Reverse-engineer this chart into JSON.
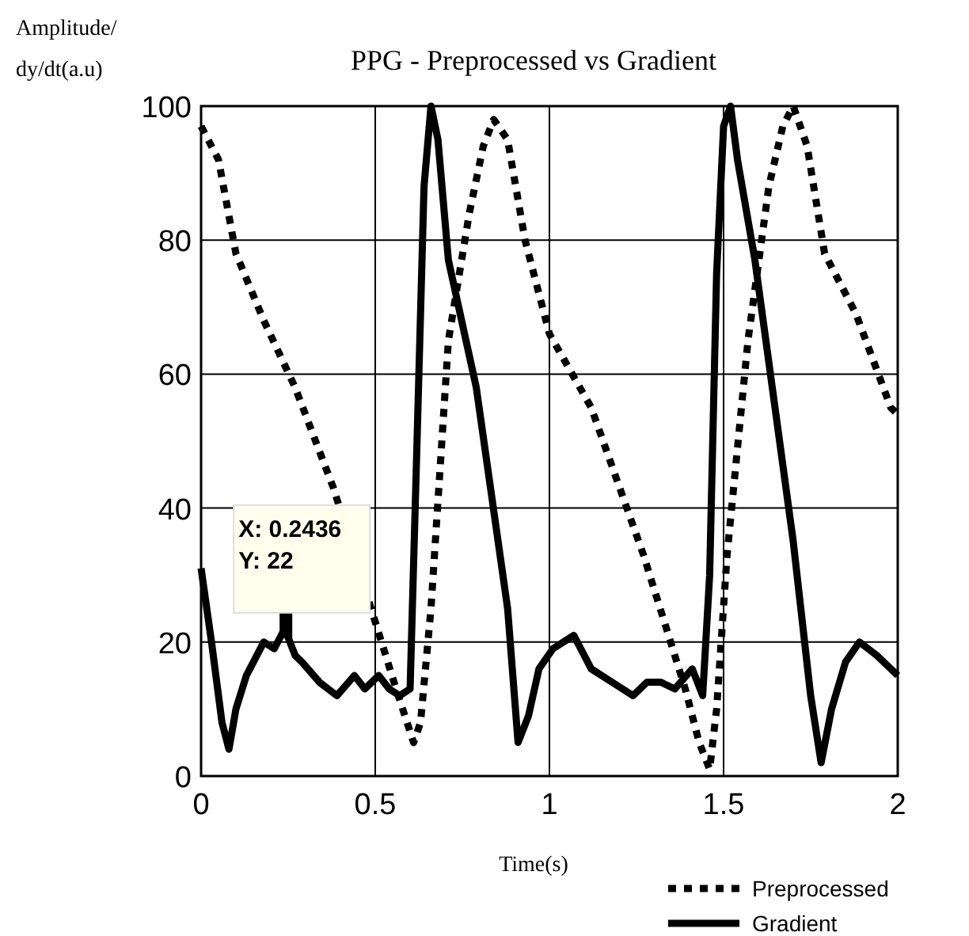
{
  "chart_data": {
    "type": "line",
    "title": "PPG - Preprocessed vs Gradient",
    "xlabel": "Time(s)",
    "ylabel": "Amplitude/\ndy/dt(a.u)",
    "xlim": [
      0,
      2
    ],
    "ylim": [
      0,
      100
    ],
    "xticks": [
      0,
      0.5,
      1,
      1.5,
      2
    ],
    "yticks": [
      0,
      20,
      40,
      60,
      80,
      100
    ],
    "grid": true,
    "legend": "bottom right",
    "annotations": [
      {
        "text": "X: 0.2436\nY: 22",
        "x": 0.2436,
        "y": 22
      }
    ],
    "series": [
      {
        "name": "Preprocessed",
        "color": "#000000",
        "line_style": "dotted",
        "x": [
          0,
          0.05,
          0.1,
          0.18,
          0.27,
          0.38,
          0.5,
          0.56,
          0.61,
          0.63,
          0.66,
          0.71,
          0.77,
          0.81,
          0.84,
          0.88,
          0.93,
          1.0,
          1.12,
          1.27,
          1.39,
          1.43,
          1.46,
          1.48,
          1.51,
          1.57,
          1.63,
          1.67,
          1.7,
          1.74,
          1.79,
          1.88,
          1.98,
          2.0
        ],
        "values": [
          97,
          92,
          78,
          68,
          58,
          43,
          23,
          13,
          5,
          8,
          25,
          65,
          84,
          94,
          98,
          95,
          80,
          66,
          55,
          33,
          13,
          5,
          1,
          10,
          33,
          65,
          88,
          97,
          100,
          94,
          78,
          69,
          55,
          54
        ]
      },
      {
        "name": "Gradient",
        "color": "#000000",
        "line_style": "solid",
        "x": [
          0,
          0.03,
          0.06,
          0.08,
          0.1,
          0.13,
          0.18,
          0.21,
          0.24,
          0.27,
          0.29,
          0.34,
          0.39,
          0.44,
          0.47,
          0.51,
          0.54,
          0.57,
          0.6,
          0.62,
          0.64,
          0.66,
          0.68,
          0.71,
          0.79,
          0.88,
          0.91,
          0.94,
          0.97,
          1.01,
          1.07,
          1.12,
          1.18,
          1.24,
          1.28,
          1.32,
          1.36,
          1.41,
          1.44,
          1.46,
          1.48,
          1.5,
          1.52,
          1.54,
          1.59,
          1.7,
          1.75,
          1.78,
          1.81,
          1.85,
          1.89,
          1.94,
          2.0
        ],
        "values": [
          31,
          20,
          8,
          4,
          10,
          15,
          20,
          19,
          22,
          18,
          17,
          14,
          12,
          15,
          13,
          15,
          13,
          12,
          13,
          50,
          88,
          100,
          95,
          77,
          58,
          25,
          5,
          9,
          16,
          19,
          21,
          16,
          14,
          12,
          14,
          14,
          13,
          16,
          12,
          30,
          75,
          97,
          100,
          92,
          77,
          35,
          12,
          2,
          10,
          17,
          20,
          18,
          15
        ]
      }
    ]
  }
}
